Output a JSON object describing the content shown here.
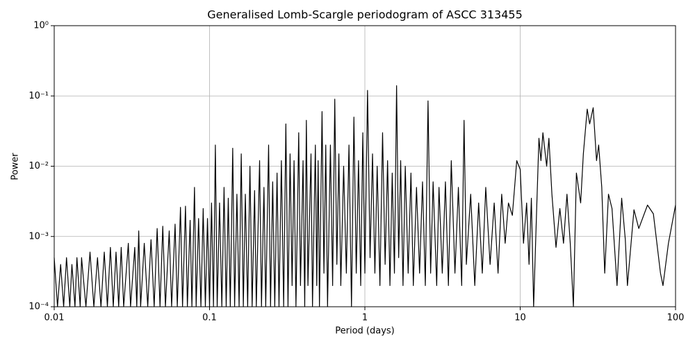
{
  "chart_data": {
    "type": "line",
    "title": "Generalised Lomb-Scargle periodogram of ASCC 313455",
    "x_label": "Period (days)",
    "y_label": "Power",
    "x_scale": "log",
    "y_scale": "log",
    "grid": true,
    "color": "#000000",
    "xlim": [
      0.01,
      100
    ],
    "ylim": [
      0.0001,
      1
    ],
    "xticks": [
      0.01,
      0.1,
      1,
      10,
      100
    ],
    "yticks": [
      {
        "value": 0.0001,
        "label": "10⁻⁴"
      },
      {
        "value": 0.001,
        "label": "10⁻³"
      },
      {
        "value": 0.01,
        "label": "10⁻²"
      },
      {
        "value": 0.1,
        "label": "10⁻¹"
      },
      {
        "value": 1,
        "label": "10⁰"
      }
    ],
    "x": [
      0.01,
      0.0105,
      0.011,
      0.0115,
      0.012,
      0.0126,
      0.013,
      0.0136,
      0.014,
      0.0147,
      0.015,
      0.016,
      0.017,
      0.018,
      0.019,
      0.02,
      0.021,
      0.022,
      0.023,
      0.024,
      0.025,
      0.026,
      0.027,
      0.028,
      0.03,
      0.031,
      0.033,
      0.034,
      0.035,
      0.036,
      0.038,
      0.04,
      0.042,
      0.044,
      0.046,
      0.048,
      0.05,
      0.052,
      0.055,
      0.057,
      0.06,
      0.062,
      0.065,
      0.067,
      0.07,
      0.072,
      0.075,
      0.077,
      0.08,
      0.082,
      0.085,
      0.088,
      0.091,
      0.094,
      0.097,
      0.1,
      0.103,
      0.106,
      0.109,
      0.112,
      0.116,
      0.12,
      0.124,
      0.128,
      0.132,
      0.136,
      0.141,
      0.145,
      0.15,
      0.155,
      0.16,
      0.165,
      0.17,
      0.176,
      0.182,
      0.188,
      0.195,
      0.2,
      0.21,
      0.216,
      0.224,
      0.23,
      0.24,
      0.247,
      0.255,
      0.263,
      0.272,
      0.28,
      0.29,
      0.3,
      0.31,
      0.32,
      0.33,
      0.34,
      0.35,
      0.36,
      0.375,
      0.385,
      0.4,
      0.41,
      0.42,
      0.43,
      0.45,
      0.46,
      0.48,
      0.49,
      0.5,
      0.51,
      0.53,
      0.545,
      0.56,
      0.575,
      0.6,
      0.62,
      0.64,
      0.66,
      0.68,
      0.7,
      0.73,
      0.76,
      0.79,
      0.82,
      0.85,
      0.88,
      0.91,
      0.94,
      0.97,
      1.0,
      1.04,
      1.08,
      1.12,
      1.16,
      1.2,
      1.25,
      1.3,
      1.35,
      1.4,
      1.45,
      1.5,
      1.55,
      1.6,
      1.65,
      1.7,
      1.76,
      1.82,
      1.9,
      1.98,
      2.05,
      2.15,
      2.25,
      2.35,
      2.45,
      2.55,
      2.65,
      2.75,
      2.9,
      3.0,
      3.15,
      3.3,
      3.45,
      3.6,
      3.8,
      4.0,
      4.2,
      4.35,
      4.5,
      4.8,
      5.1,
      5.4,
      5.7,
      6.0,
      6.4,
      6.8,
      7.2,
      7.6,
      8.0,
      8.4,
      8.9,
      9.5,
      10.0,
      10.5,
      11.0,
      11.4,
      11.8,
      12.2,
      12.8,
      13.2,
      13.6,
      14.0,
      14.8,
      15.3,
      16.0,
      17.0,
      18.0,
      19.0,
      20.0,
      21.0,
      22.0,
      23.0,
      24.5,
      25.5,
      27.0,
      28.0,
      29.5,
      31.0,
      32.0,
      33.5,
      35.0,
      37.0,
      39.0,
      42.0,
      45.0,
      47.5,
      49.0,
      54.0,
      58.0,
      66.0,
      72.0,
      80.0,
      83.0,
      90.0,
      100.0
    ],
    "values": [
      0.0005,
      0.0001,
      0.0004,
      0.0001,
      0.0005,
      0.0001,
      0.0004,
      0.0001,
      0.0005,
      0.0001,
      0.0005,
      0.0001,
      0.0006,
      0.0001,
      0.0005,
      0.0001,
      0.0006,
      0.0001,
      0.0007,
      0.0001,
      0.0006,
      0.0001,
      0.0007,
      0.0001,
      0.0008,
      0.0001,
      0.0007,
      0.0001,
      0.0012,
      0.0001,
      0.0008,
      0.0001,
      0.0009,
      0.0001,
      0.0013,
      0.0001,
      0.0014,
      0.0001,
      0.0012,
      0.0001,
      0.0015,
      0.0001,
      0.0026,
      0.0001,
      0.0027,
      0.0001,
      0.0017,
      0.0001,
      0.005,
      0.0001,
      0.0018,
      0.0001,
      0.0025,
      0.0001,
      0.0018,
      0.0001,
      0.003,
      0.0001,
      0.02,
      0.0001,
      0.003,
      0.0001,
      0.005,
      0.0001,
      0.0035,
      0.0001,
      0.018,
      0.0001,
      0.004,
      0.0001,
      0.015,
      0.0001,
      0.004,
      0.0001,
      0.01,
      0.0001,
      0.0045,
      0.0001,
      0.012,
      0.0001,
      0.005,
      0.0001,
      0.02,
      0.0001,
      0.006,
      0.0001,
      0.008,
      0.0001,
      0.012,
      0.0001,
      0.04,
      0.0001,
      0.015,
      0.0002,
      0.012,
      0.0001,
      0.03,
      0.0002,
      0.012,
      0.0001,
      0.045,
      0.0002,
      0.015,
      0.0001,
      0.02,
      0.0002,
      0.012,
      0.0001,
      0.06,
      0.0003,
      0.02,
      0.0001,
      0.02,
      0.0002,
      0.09,
      0.0004,
      0.015,
      0.0002,
      0.01,
      0.0003,
      0.02,
      0.0001,
      0.05,
      0.0003,
      0.012,
      0.0002,
      0.03,
      0.0003,
      0.12,
      0.0005,
      0.015,
      0.0003,
      0.01,
      0.0002,
      0.03,
      0.0004,
      0.012,
      0.0002,
      0.008,
      0.0003,
      0.14,
      0.0005,
      0.012,
      0.0002,
      0.01,
      0.0003,
      0.008,
      0.0002,
      0.005,
      0.0003,
      0.006,
      0.0002,
      0.085,
      0.0003,
      0.006,
      0.0002,
      0.005,
      0.0003,
      0.006,
      0.0002,
      0.012,
      0.0003,
      0.005,
      0.0002,
      0.045,
      0.0004,
      0.004,
      0.0002,
      0.003,
      0.0003,
      0.005,
      0.0004,
      0.003,
      0.0003,
      0.004,
      0.0008,
      0.003,
      0.002,
      0.012,
      0.009,
      0.0008,
      0.003,
      0.0004,
      0.0035,
      0.0001,
      0.003,
      0.025,
      0.012,
      0.03,
      0.01,
      0.025,
      0.004,
      0.0007,
      0.0025,
      0.0008,
      0.004,
      0.0008,
      0.0001,
      0.008,
      0.003,
      0.015,
      0.065,
      0.04,
      0.068,
      0.012,
      0.02,
      0.005,
      0.0003,
      0.004,
      0.0025,
      0.0002,
      0.0035,
      0.0009,
      0.0002,
      0.0024,
      0.0013,
      0.0028,
      0.0021,
      0.0003,
      0.0002,
      0.0008,
      0.0028
    ]
  }
}
